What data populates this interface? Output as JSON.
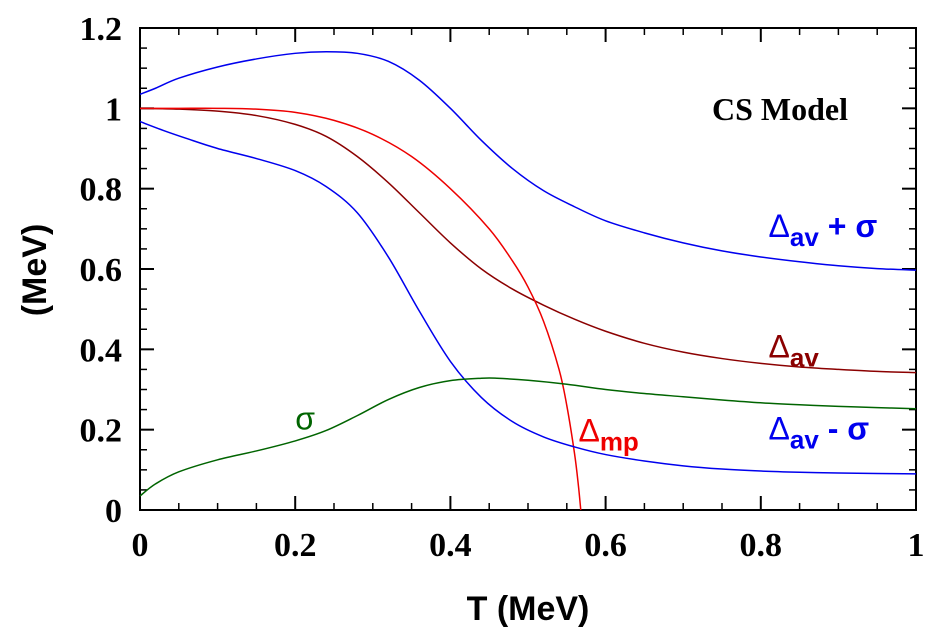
{
  "chart_data": {
    "type": "line",
    "title": "",
    "annotation": "CS Model",
    "xlabel": "T (MeV)",
    "ylabel": "(MeV)",
    "xlim": [
      0,
      1
    ],
    "ylim": [
      0,
      1.2
    ],
    "x_ticks": [
      0,
      0.2,
      0.4,
      0.6,
      0.8,
      1
    ],
    "x_tick_labels": [
      "0",
      "0.2",
      "0.4",
      "0.6",
      "0.8",
      "1"
    ],
    "y_ticks": [
      0,
      0.2,
      0.4,
      0.6,
      0.8,
      1.0,
      1.2
    ],
    "y_tick_labels": [
      "0",
      "0.2",
      "0.4",
      "0.6",
      "0.8",
      "1",
      "1.2"
    ],
    "grid": false,
    "series": [
      {
        "name": "Δav + σ",
        "label_main": "Δ",
        "label_sub": "av",
        "label_tail": " + σ",
        "color": "#0000ee",
        "label_pos": [
          0.81,
          0.68
        ],
        "x": [
          0,
          0.02,
          0.05,
          0.1,
          0.15,
          0.2,
          0.24,
          0.28,
          0.32,
          0.36,
          0.4,
          0.44,
          0.48,
          0.52,
          0.56,
          0.6,
          0.65,
          0.7,
          0.75,
          0.8,
          0.85,
          0.9,
          0.95,
          1.0
        ],
        "y": [
          1.035,
          1.05,
          1.075,
          1.103,
          1.123,
          1.137,
          1.141,
          1.137,
          1.117,
          1.07,
          1.0,
          0.92,
          0.85,
          0.795,
          0.755,
          0.72,
          0.69,
          0.665,
          0.645,
          0.63,
          0.618,
          0.608,
          0.601,
          0.597
        ]
      },
      {
        "name": "Δav",
        "label_main": "Δ",
        "label_sub": "av",
        "label_tail": "",
        "color": "#8b0000",
        "label_pos": [
          0.81,
          0.38
        ],
        "x": [
          0,
          0.05,
          0.1,
          0.15,
          0.2,
          0.24,
          0.28,
          0.32,
          0.36,
          0.4,
          0.44,
          0.48,
          0.52,
          0.56,
          0.6,
          0.65,
          0.7,
          0.75,
          0.8,
          0.85,
          0.9,
          0.95,
          1.0
        ],
        "y": [
          1.0,
          0.998,
          0.993,
          0.982,
          0.96,
          0.93,
          0.88,
          0.815,
          0.74,
          0.665,
          0.6,
          0.55,
          0.51,
          0.475,
          0.445,
          0.415,
          0.393,
          0.377,
          0.365,
          0.356,
          0.35,
          0.345,
          0.342
        ]
      },
      {
        "name": "Δmp",
        "label_main": "Δ",
        "label_sub": "mp",
        "label_tail": "",
        "color": "#ee0000",
        "label_pos": [
          0.565,
          0.17
        ],
        "x": [
          0,
          0.05,
          0.1,
          0.15,
          0.2,
          0.25,
          0.3,
          0.35,
          0.4,
          0.45,
          0.48,
          0.5,
          0.52,
          0.54,
          0.55,
          0.56,
          0.565,
          0.568
        ],
        "y": [
          1.0,
          1.0,
          1.0,
          0.998,
          0.99,
          0.97,
          0.935,
          0.88,
          0.8,
          0.7,
          0.62,
          0.555,
          0.47,
          0.35,
          0.26,
          0.14,
          0.06,
          0.0
        ]
      },
      {
        "name": "Δav - σ",
        "label_main": "Δ",
        "label_sub": "av",
        "label_tail": " - σ",
        "color": "#0000ee",
        "label_pos": [
          0.81,
          0.175
        ],
        "x": [
          0,
          0.03,
          0.06,
          0.1,
          0.15,
          0.2,
          0.24,
          0.28,
          0.32,
          0.36,
          0.4,
          0.44,
          0.48,
          0.52,
          0.56,
          0.6,
          0.65,
          0.7,
          0.75,
          0.8,
          0.85,
          0.9,
          0.95,
          1.0
        ],
        "y": [
          0.967,
          0.945,
          0.925,
          0.9,
          0.875,
          0.845,
          0.805,
          0.74,
          0.63,
          0.495,
          0.37,
          0.28,
          0.22,
          0.182,
          0.157,
          0.138,
          0.122,
          0.11,
          0.102,
          0.097,
          0.094,
          0.092,
          0.091,
          0.09
        ]
      },
      {
        "name": "σ",
        "label_main": "σ",
        "label_sub": "",
        "label_tail": "",
        "color": "#006400",
        "label_pos": [
          0.2,
          0.2
        ],
        "x": [
          0,
          0.02,
          0.05,
          0.1,
          0.15,
          0.2,
          0.24,
          0.28,
          0.32,
          0.36,
          0.4,
          0.44,
          0.46,
          0.5,
          0.55,
          0.6,
          0.65,
          0.7,
          0.75,
          0.8,
          0.85,
          0.9,
          0.95,
          1.0
        ],
        "y": [
          0.035,
          0.065,
          0.095,
          0.125,
          0.147,
          0.172,
          0.198,
          0.235,
          0.275,
          0.305,
          0.322,
          0.328,
          0.328,
          0.323,
          0.313,
          0.3,
          0.29,
          0.282,
          0.274,
          0.267,
          0.262,
          0.258,
          0.255,
          0.252
        ]
      }
    ]
  }
}
